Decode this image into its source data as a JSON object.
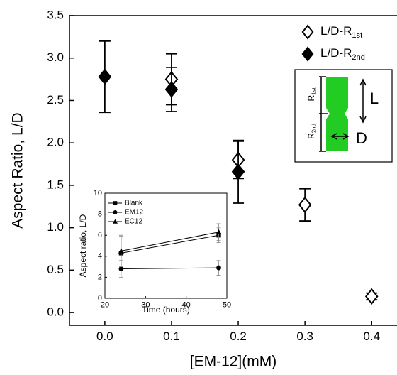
{
  "chart_data": [
    {
      "type": "scatter",
      "xlabel": "[EM-12](mM)",
      "ylabel": "Aspect Ratio, L/D",
      "xlim": [
        -0.053,
        0.438
      ],
      "ylim": [
        -0.15,
        3.5
      ],
      "xticks": [
        {
          "value": 0,
          "label": "0.0"
        },
        0.1,
        0.2,
        0.3,
        0.4
      ],
      "yticks": [
        {
          "value": 0,
          "label": "0.0"
        },
        0.5,
        {
          "value": 1,
          "label": "1.0"
        },
        1.5,
        {
          "value": 2,
          "label": "2.0"
        },
        2.5,
        {
          "value": 3,
          "label": "3.0"
        },
        3.5
      ],
      "legend": "upper right",
      "series": [
        {
          "name": "L/D-R",
          "subscript": "1st",
          "marker": "open-diamond",
          "color": "#000000",
          "x": [
            0.1,
            0.2,
            0.3,
            0.4
          ],
          "values": [
            2.75,
            1.8,
            1.27,
            0.19
          ],
          "errors": [
            0.3,
            0.22,
            0.19,
            0.04
          ]
        },
        {
          "name": "L/D-R",
          "subscript": "2nd",
          "marker": "filled-diamond",
          "color": "#000000",
          "x": [
            0,
            0.1,
            0.2
          ],
          "values": [
            2.78,
            2.63,
            1.66
          ],
          "errors": [
            0.42,
            0.26,
            0.37
          ]
        }
      ],
      "schematic": {
        "r1": "R",
        "r1_sub": "1st",
        "r2": "R",
        "r2_sub": "2nd",
        "l": "L",
        "d": "D",
        "color": "#22cc22"
      }
    },
    {
      "type": "line",
      "xlabel": "Time (hours)",
      "ylabel": "Aspect ratio, L/D",
      "xlim": [
        20,
        50
      ],
      "ylim": [
        0,
        10
      ],
      "xticks": [
        20,
        30,
        40,
        50
      ],
      "yticks": [
        0,
        2,
        4,
        6,
        8,
        10
      ],
      "legend": "upper left",
      "series": [
        {
          "name": "Blank",
          "marker": "square",
          "color": "#000000",
          "x": [
            24,
            48
          ],
          "values": [
            4.3,
            6.0
          ],
          "errors": [
            1.6,
            0.7
          ]
        },
        {
          "name": "EM12",
          "marker": "circle",
          "color": "#000000",
          "x": [
            24,
            48
          ],
          "values": [
            2.8,
            2.9
          ],
          "errors": [
            0.8,
            0.7
          ]
        },
        {
          "name": "EC12",
          "marker": "triangle",
          "color": "#000000",
          "x": [
            24,
            48
          ],
          "values": [
            4.5,
            6.3
          ],
          "errors": [
            1.5,
            0.8
          ]
        }
      ]
    }
  ]
}
